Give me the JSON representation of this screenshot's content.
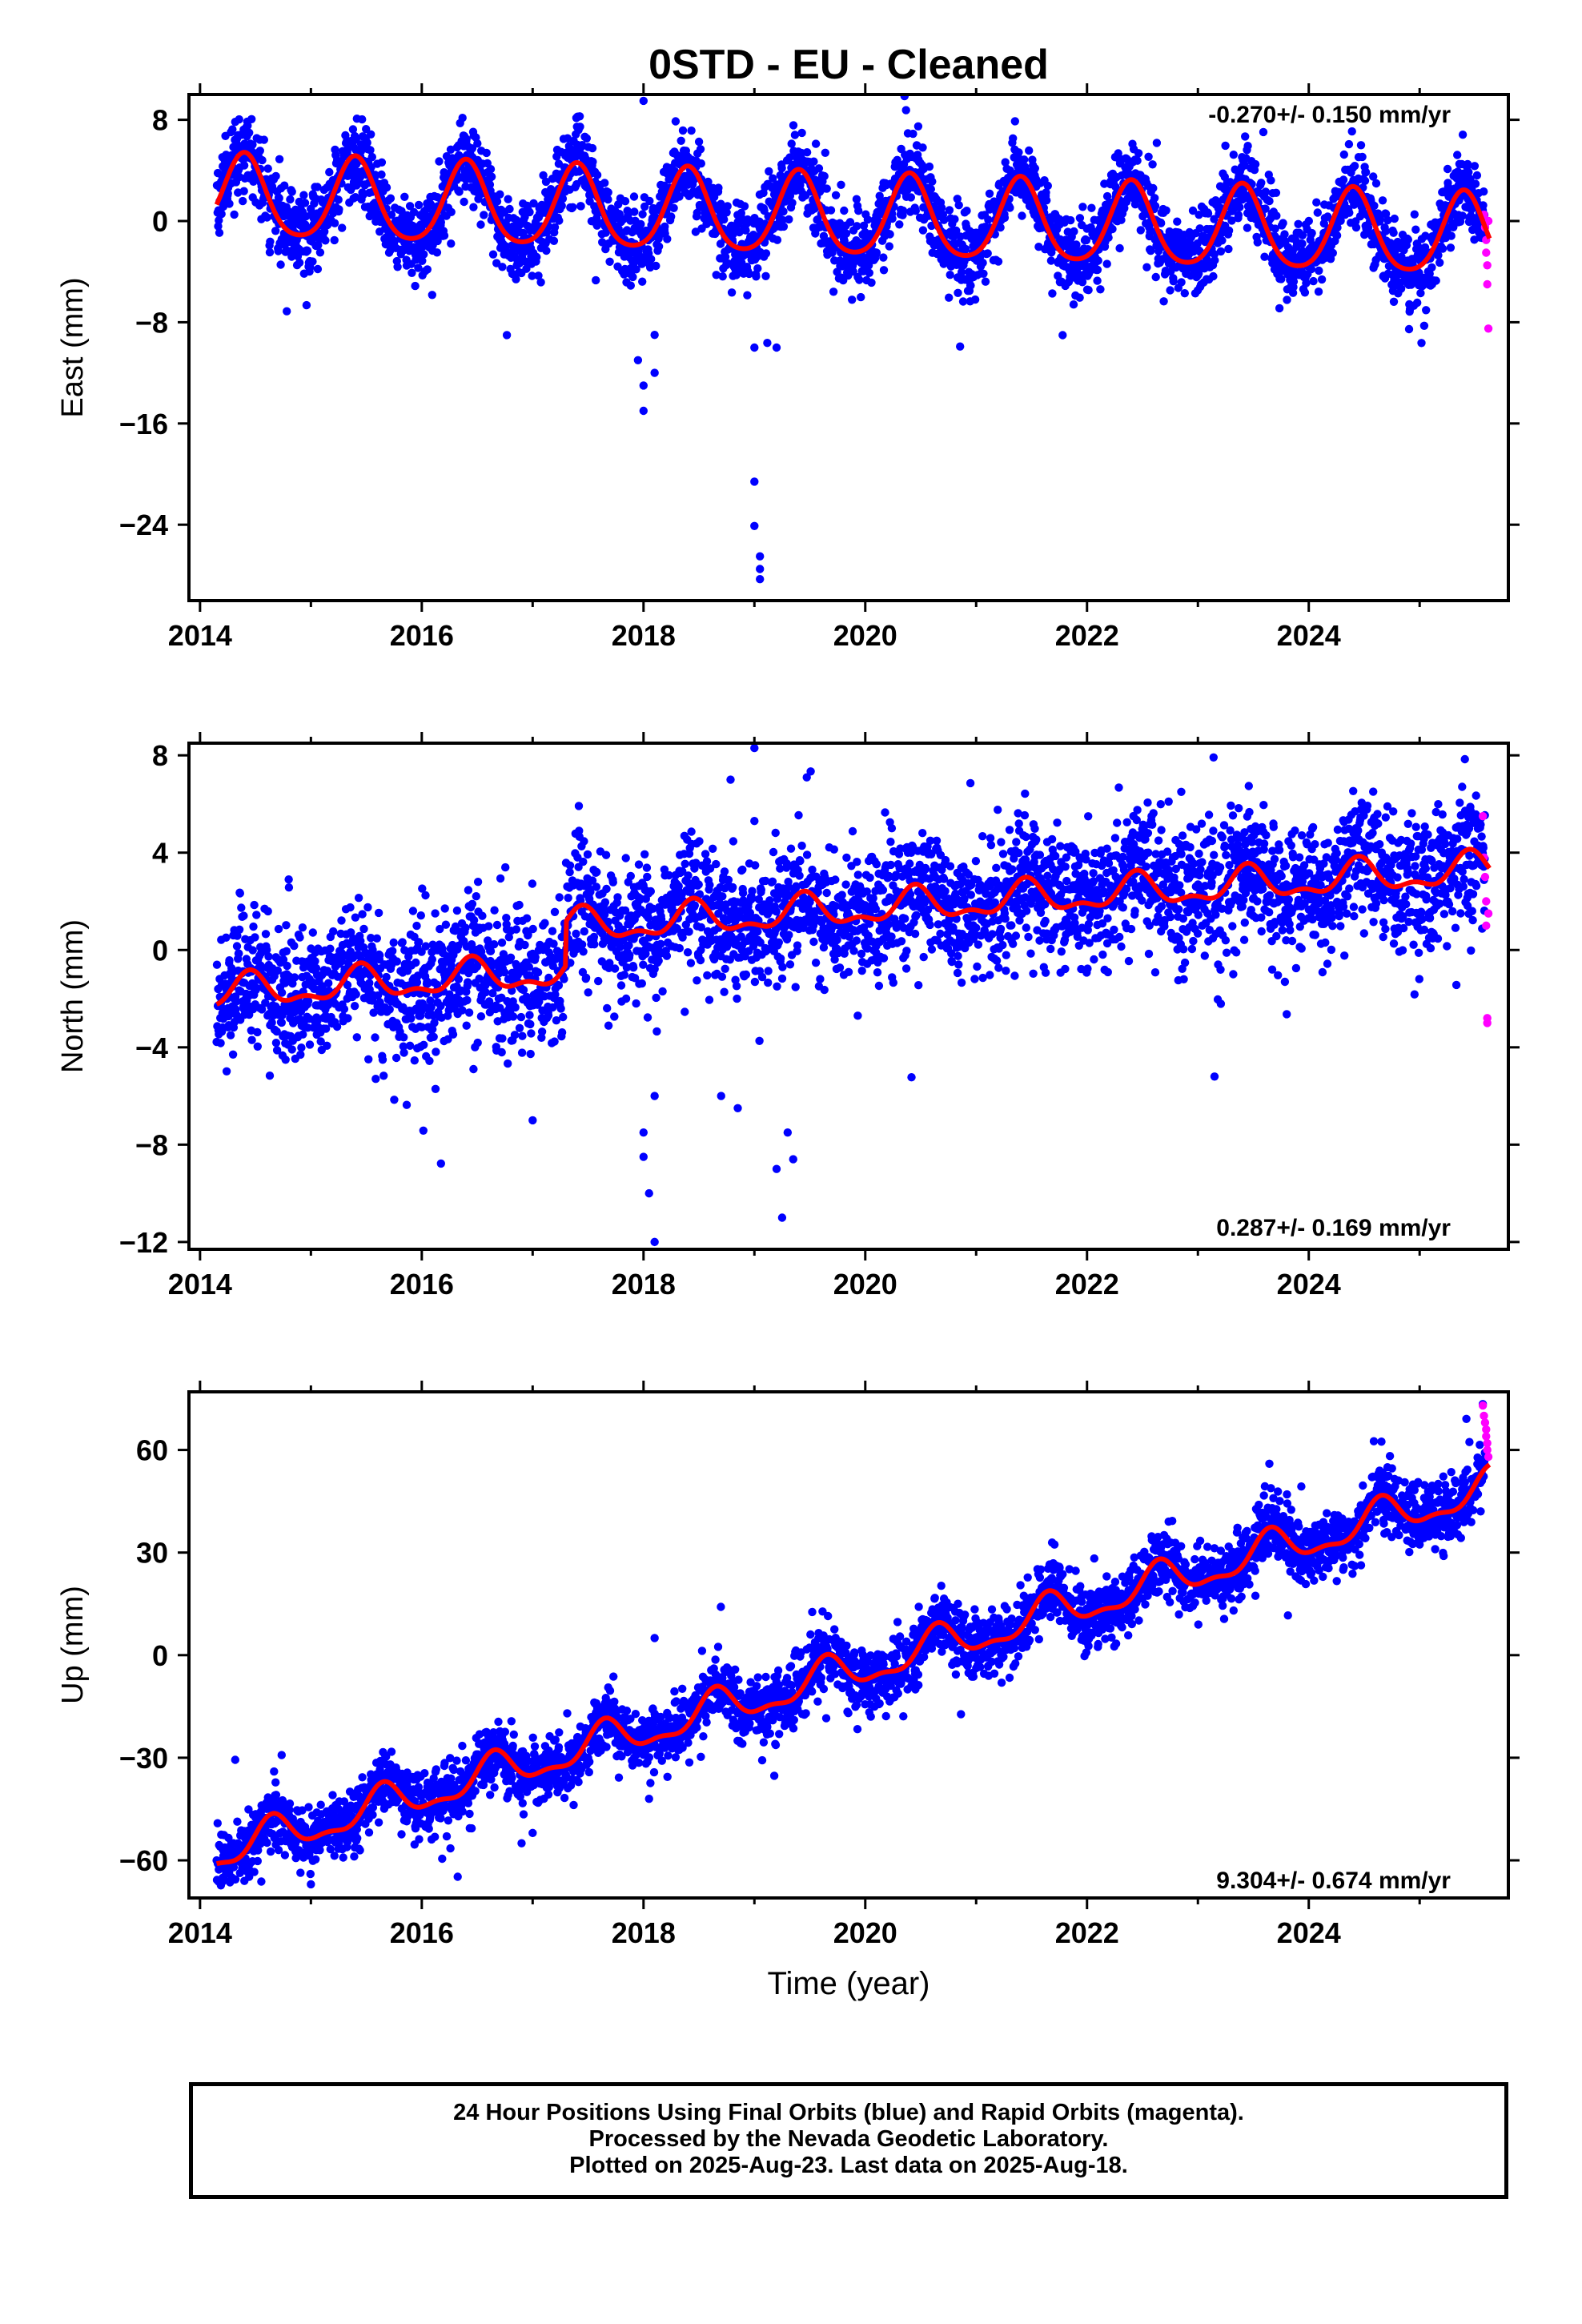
{
  "title": "0STD  - EU - Cleaned",
  "footer": {
    "line1": "24 Hour Positions Using Final Orbits (blue) and Rapid Orbits (magenta).",
    "line2": "Processed by the Nevada Geodetic Laboratory.",
    "line3": "Plotted on 2025-Aug-23. Last data on 2025-Aug-18."
  },
  "colors": {
    "final_orbits": "#0000ff",
    "rapid_orbits": "#ff00ff",
    "model_fit": "#ff0000"
  },
  "chart_data": [
    {
      "type": "scatter",
      "component": "east",
      "ylabel": "East (mm)",
      "xlabel": "",
      "xlim": [
        2013.9,
        2025.8
      ],
      "ylim": [
        -30,
        10
      ],
      "xticks": [
        2014,
        2016,
        2018,
        2020,
        2022,
        2024
      ],
      "yticks": [
        -24,
        -16,
        -8,
        0,
        8
      ],
      "rate_label": "-0.270+/- 0.150 mm/yr",
      "model": {
        "offset": 1.8,
        "trend": -0.27,
        "annual_amp": 3.2,
        "annual_peak": 2014.4,
        "semiannual_amp": 0.5,
        "noise_sd": 1.5,
        "start": 2014.15,
        "end": 2025.63
      },
      "outliers": [
        [
          2018.0,
          -15
        ],
        [
          2018.0,
          -13
        ],
        [
          2017.95,
          -11
        ],
        [
          2018.1,
          -9
        ],
        [
          2018.1,
          -12
        ],
        [
          2019.0,
          -20.6
        ],
        [
          2019.0,
          -24.1
        ],
        [
          2019.05,
          -26.5
        ],
        [
          2019.05,
          -27.5
        ],
        [
          2019.05,
          -28.3
        ],
        [
          2019.0,
          -10
        ],
        [
          2019.2,
          -10
        ],
        [
          2018.0,
          9.5
        ]
      ],
      "rapid": [
        [
          2025.58,
          0.5
        ],
        [
          2025.59,
          -0.5
        ],
        [
          2025.6,
          -1.5
        ],
        [
          2025.6,
          -2.5
        ],
        [
          2025.61,
          -3.5
        ],
        [
          2025.61,
          -5
        ],
        [
          2025.62,
          0
        ],
        [
          2025.62,
          -8.5
        ]
      ]
    },
    {
      "type": "scatter",
      "component": "north",
      "ylabel": "North (mm)",
      "xlabel": "",
      "xlim": [
        2013.9,
        2025.8
      ],
      "ylim": [
        -12.3,
        8.5
      ],
      "xticks": [
        2014,
        2016,
        2018,
        2020,
        2022,
        2024
      ],
      "yticks": [
        -12,
        -8,
        -4,
        0,
        4,
        8
      ],
      "rate_label": "0.287+/- 0.169 mm/yr",
      "model": {
        "offset": -1.8,
        "trend": 0.287,
        "annual_amp": 0.6,
        "annual_peak": 2014.45,
        "semiannual_amp": 0.3,
        "noise_sd": 1.3,
        "start": 2014.15,
        "end": 2025.63,
        "step_at": 2017.3,
        "step_size": 1.8
      },
      "outliers": [
        [
          2018.0,
          -7.5
        ],
        [
          2018.0,
          -8.5
        ],
        [
          2018.05,
          -10
        ],
        [
          2018.1,
          -12
        ],
        [
          2018.1,
          -6
        ],
        [
          2018.7,
          -6
        ],
        [
          2018.85,
          -6.5
        ],
        [
          2019.0,
          8.3
        ],
        [
          2019.0,
          5.3
        ],
        [
          2019.2,
          -9
        ],
        [
          2019.25,
          -11
        ],
        [
          2019.3,
          -7.5
        ],
        [
          2019.35,
          -8.6
        ],
        [
          2022.85,
          6.5
        ],
        [
          2023.15,
          -5.2
        ],
        [
          2014.8,
          2.9
        ],
        [
          2017.0,
          -7
        ]
      ],
      "rapid": [
        [
          2025.57,
          5.5
        ],
        [
          2025.58,
          3.8
        ],
        [
          2025.59,
          3
        ],
        [
          2025.6,
          2
        ],
        [
          2025.6,
          1
        ],
        [
          2025.61,
          -2.8
        ],
        [
          2025.61,
          -3
        ],
        [
          2025.62,
          1.5
        ]
      ]
    },
    {
      "type": "scatter",
      "component": "up",
      "ylabel": "Up (mm)",
      "xlabel": "Time (year)",
      "xlim": [
        2013.9,
        2025.8
      ],
      "ylim": [
        -71,
        77
      ],
      "xticks": [
        2014,
        2016,
        2018,
        2020,
        2022,
        2024
      ],
      "yticks": [
        -60,
        -30,
        0,
        30,
        60
      ],
      "rate_label": "9.304+/- 0.674 mm/yr",
      "model": {
        "offset": -58,
        "trend": 9.304,
        "annual_amp": 5,
        "annual_peak": 2014.65,
        "semiannual_amp": 2,
        "noise_sd": 4.5,
        "start": 2014.15,
        "end": 2025.63
      },
      "outliers": [
        [
          2018.05,
          -42
        ],
        [
          2018.1,
          5
        ],
        [
          2014.4,
          -66
        ],
        [
          2015.0,
          -67
        ],
        [
          2016.9,
          -55
        ],
        [
          2017.0,
          -52
        ]
      ],
      "rapid": [
        [
          2025.57,
          73
        ],
        [
          2025.58,
          70
        ],
        [
          2025.59,
          68
        ],
        [
          2025.6,
          66
        ],
        [
          2025.6,
          64
        ],
        [
          2025.61,
          62
        ],
        [
          2025.61,
          60
        ],
        [
          2025.62,
          58
        ]
      ]
    }
  ]
}
